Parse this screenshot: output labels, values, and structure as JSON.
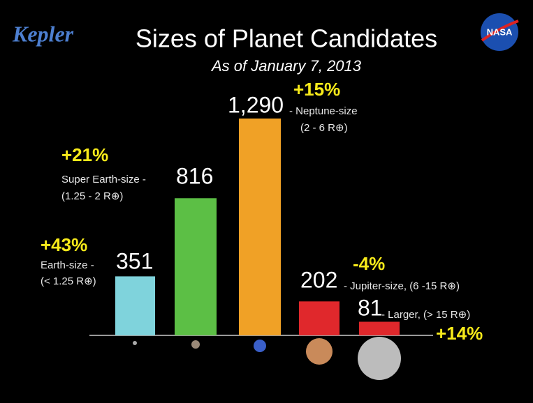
{
  "chart_data": {
    "type": "bar",
    "title": "Sizes of Planet Candidates",
    "subtitle": "As of January 7, 2013",
    "logo_left": "Kepler",
    "logo_right": "NASA",
    "categories": [
      "Earth-size -",
      "Super Earth-size -",
      "- Neptune-size",
      "- Jupiter-size, (6 -15 R⊕)",
      "- Larger, (> 15 R⊕)"
    ],
    "ranges": [
      "(< 1.25 R⊕)",
      "(1.25 - 2 R⊕)",
      "(2 - 6 R⊕)",
      null,
      null
    ],
    "values": [
      351,
      816,
      1290,
      202,
      81
    ],
    "value_labels": [
      "351",
      "816",
      "1,290",
      "202",
      "81"
    ],
    "changes": [
      "+43%",
      "+21%",
      "+15%",
      "-4%",
      "+14%"
    ],
    "colors": [
      "#7fd3dc",
      "#5cbf45",
      "#f0a126",
      "#e0282c",
      "#e0282c"
    ]
  }
}
